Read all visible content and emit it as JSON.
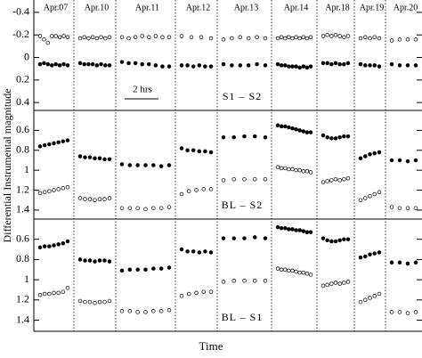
{
  "chart_data": {
    "type": "scatter",
    "x_label": "Time",
    "y_label": "Differential Instrumental magnitude",
    "inverted_y": true,
    "categories": [
      "Apr.07",
      "Apr.10",
      "Apr.11",
      "Apr.12",
      "Apr.13",
      "Apr.14",
      "Apr.18",
      "Apr.19",
      "Apr.20"
    ],
    "scale_label": "2 hrs",
    "panels": [
      {
        "label": "S1 – S2",
        "ylim": [
          -0.51,
          0.47
        ],
        "yticks": [
          -0.4,
          -0.2,
          0,
          0.2,
          0.4
        ],
        "filled": [
          [
            0.06,
            0.05,
            0.06,
            0.07,
            0.06,
            0.07,
            0.06,
            0.07
          ],
          [
            0.05,
            0.06,
            0.06,
            0.06,
            0.07,
            0.06,
            0.07,
            0.07
          ],
          [
            0.04,
            0.05,
            0.05,
            0.06,
            0.06,
            0.07,
            0.08,
            0.08
          ],
          [
            0.07,
            0.07,
            0.08,
            0.07,
            0.08,
            0.08
          ],
          [
            0.06,
            0.07,
            0.07,
            0.07,
            0.06,
            0.07
          ],
          [
            0.06,
            0.07,
            0.07,
            0.08,
            0.08,
            0.08,
            0.09,
            0.08,
            0.09,
            0.08
          ],
          [
            0.05,
            0.05,
            0.06,
            0.05,
            0.06,
            0.06,
            0.05
          ],
          [
            0.06,
            0.07,
            0.07,
            0.07,
            0.08
          ],
          [
            0.06,
            0.07,
            0.07,
            0.07
          ]
        ],
        "open": [
          [
            -0.19,
            -0.16,
            -0.13,
            -0.19,
            -0.19,
            -0.18,
            -0.19,
            -0.18
          ],
          [
            -0.17,
            -0.18,
            -0.17,
            -0.18,
            -0.17,
            -0.18,
            -0.17,
            -0.18
          ],
          [
            -0.18,
            -0.17,
            -0.18,
            -0.19,
            -0.18,
            -0.19,
            -0.18,
            -0.18
          ],
          [
            -0.19,
            -0.18,
            -0.18,
            -0.17
          ],
          [
            -0.16,
            -0.17,
            -0.18,
            -0.17,
            -0.18,
            -0.17
          ],
          [
            -0.17,
            -0.18,
            -0.17,
            -0.18,
            -0.17,
            -0.18,
            -0.17,
            -0.18,
            -0.17,
            -0.18
          ],
          [
            -0.19,
            -0.2,
            -0.19,
            -0.2,
            -0.19,
            -0.18,
            -0.19
          ],
          [
            -0.17,
            -0.18,
            -0.17,
            -0.18,
            -0.17
          ],
          [
            -0.15,
            -0.16,
            -0.16,
            -0.16
          ]
        ]
      },
      {
        "label": "BL – S2",
        "ylim": [
          0.4,
          1.49
        ],
        "yticks": [
          0.6,
          0.8,
          1,
          1.2,
          1.4
        ],
        "filled": [
          [
            0.76,
            0.75,
            0.74,
            0.73,
            0.72,
            0.71,
            0.7
          ],
          [
            0.86,
            0.87,
            0.87,
            0.88,
            0.88,
            0.89,
            0.89
          ],
          [
            0.94,
            0.95,
            0.95,
            0.95,
            0.95,
            0.96,
            0.95
          ],
          [
            0.78,
            0.8,
            0.8,
            0.81,
            0.81,
            0.82
          ],
          [
            0.67,
            0.67,
            0.66,
            0.66,
            0.67
          ],
          [
            0.55,
            0.56,
            0.56,
            0.57,
            0.58,
            0.59,
            0.6,
            0.61,
            0.62,
            0.62
          ],
          [
            0.65,
            0.67,
            0.68,
            0.68,
            0.67,
            0.66,
            0.66
          ],
          [
            0.88,
            0.86,
            0.84,
            0.83,
            0.82
          ],
          [
            0.9,
            0.9,
            0.91,
            0.9
          ]
        ],
        "open": [
          [
            1.23,
            1.22,
            1.21,
            1.2,
            1.19,
            1.18,
            1.17
          ],
          [
            1.28,
            1.29,
            1.29,
            1.3,
            1.29,
            1.29,
            1.28
          ],
          [
            1.38,
            1.38,
            1.38,
            1.39,
            1.38,
            1.38,
            1.37
          ],
          [
            1.24,
            1.21,
            1.2,
            1.19,
            1.19
          ],
          [
            1.1,
            1.09,
            1.09,
            1.09,
            1.09
          ],
          [
            0.97,
            0.98,
            0.98,
            0.99,
            0.99,
            1.0,
            1.0,
            1.01,
            1.01,
            1.02
          ],
          [
            1.12,
            1.11,
            1.1,
            1.09,
            1.1,
            1.09,
            1.08
          ],
          [
            1.3,
            1.28,
            1.26,
            1.24,
            1.22
          ],
          [
            1.37,
            1.38,
            1.38,
            1.38
          ]
        ]
      },
      {
        "label": "BL – S1",
        "ylim": [
          0.4,
          1.51
        ],
        "yticks": [
          0.6,
          0.8,
          1,
          1.2,
          1.4
        ],
        "filled": [
          [
            0.68,
            0.67,
            0.67,
            0.66,
            0.65,
            0.64,
            0.62
          ],
          [
            0.8,
            0.81,
            0.81,
            0.82,
            0.81,
            0.81,
            0.82
          ],
          [
            0.91,
            0.9,
            0.9,
            0.9,
            0.89,
            0.89,
            0.88
          ],
          [
            0.7,
            0.72,
            0.72,
            0.73,
            0.72,
            0.73
          ],
          [
            0.59,
            0.59,
            0.59,
            0.58,
            0.59
          ],
          [
            0.48,
            0.49,
            0.49,
            0.5,
            0.5,
            0.51,
            0.51,
            0.52,
            0.53,
            0.53
          ],
          [
            0.59,
            0.61,
            0.62,
            0.62,
            0.61,
            0.6,
            0.6
          ],
          [
            0.78,
            0.77,
            0.75,
            0.74,
            0.73
          ],
          [
            0.83,
            0.83,
            0.84,
            0.83
          ]
        ],
        "open": [
          [
            1.15,
            1.14,
            1.14,
            1.13,
            1.13,
            1.12,
            1.08
          ],
          [
            1.21,
            1.22,
            1.22,
            1.23,
            1.22,
            1.22,
            1.21
          ],
          [
            1.31,
            1.31,
            1.32,
            1.32,
            1.31,
            1.31,
            1.3
          ],
          [
            1.16,
            1.14,
            1.13,
            1.12,
            1.12
          ],
          [
            1.02,
            1.01,
            1.01,
            1.01,
            1.01
          ],
          [
            0.89,
            0.9,
            0.9,
            0.91,
            0.91,
            0.92,
            0.93,
            0.93,
            0.94,
            0.95
          ],
          [
            1.06,
            1.05,
            1.04,
            1.03,
            1.04,
            1.03,
            1.02
          ],
          [
            1.22,
            1.2,
            1.18,
            1.16,
            1.14
          ],
          [
            1.32,
            1.32,
            1.33,
            1.32
          ]
        ]
      }
    ]
  }
}
